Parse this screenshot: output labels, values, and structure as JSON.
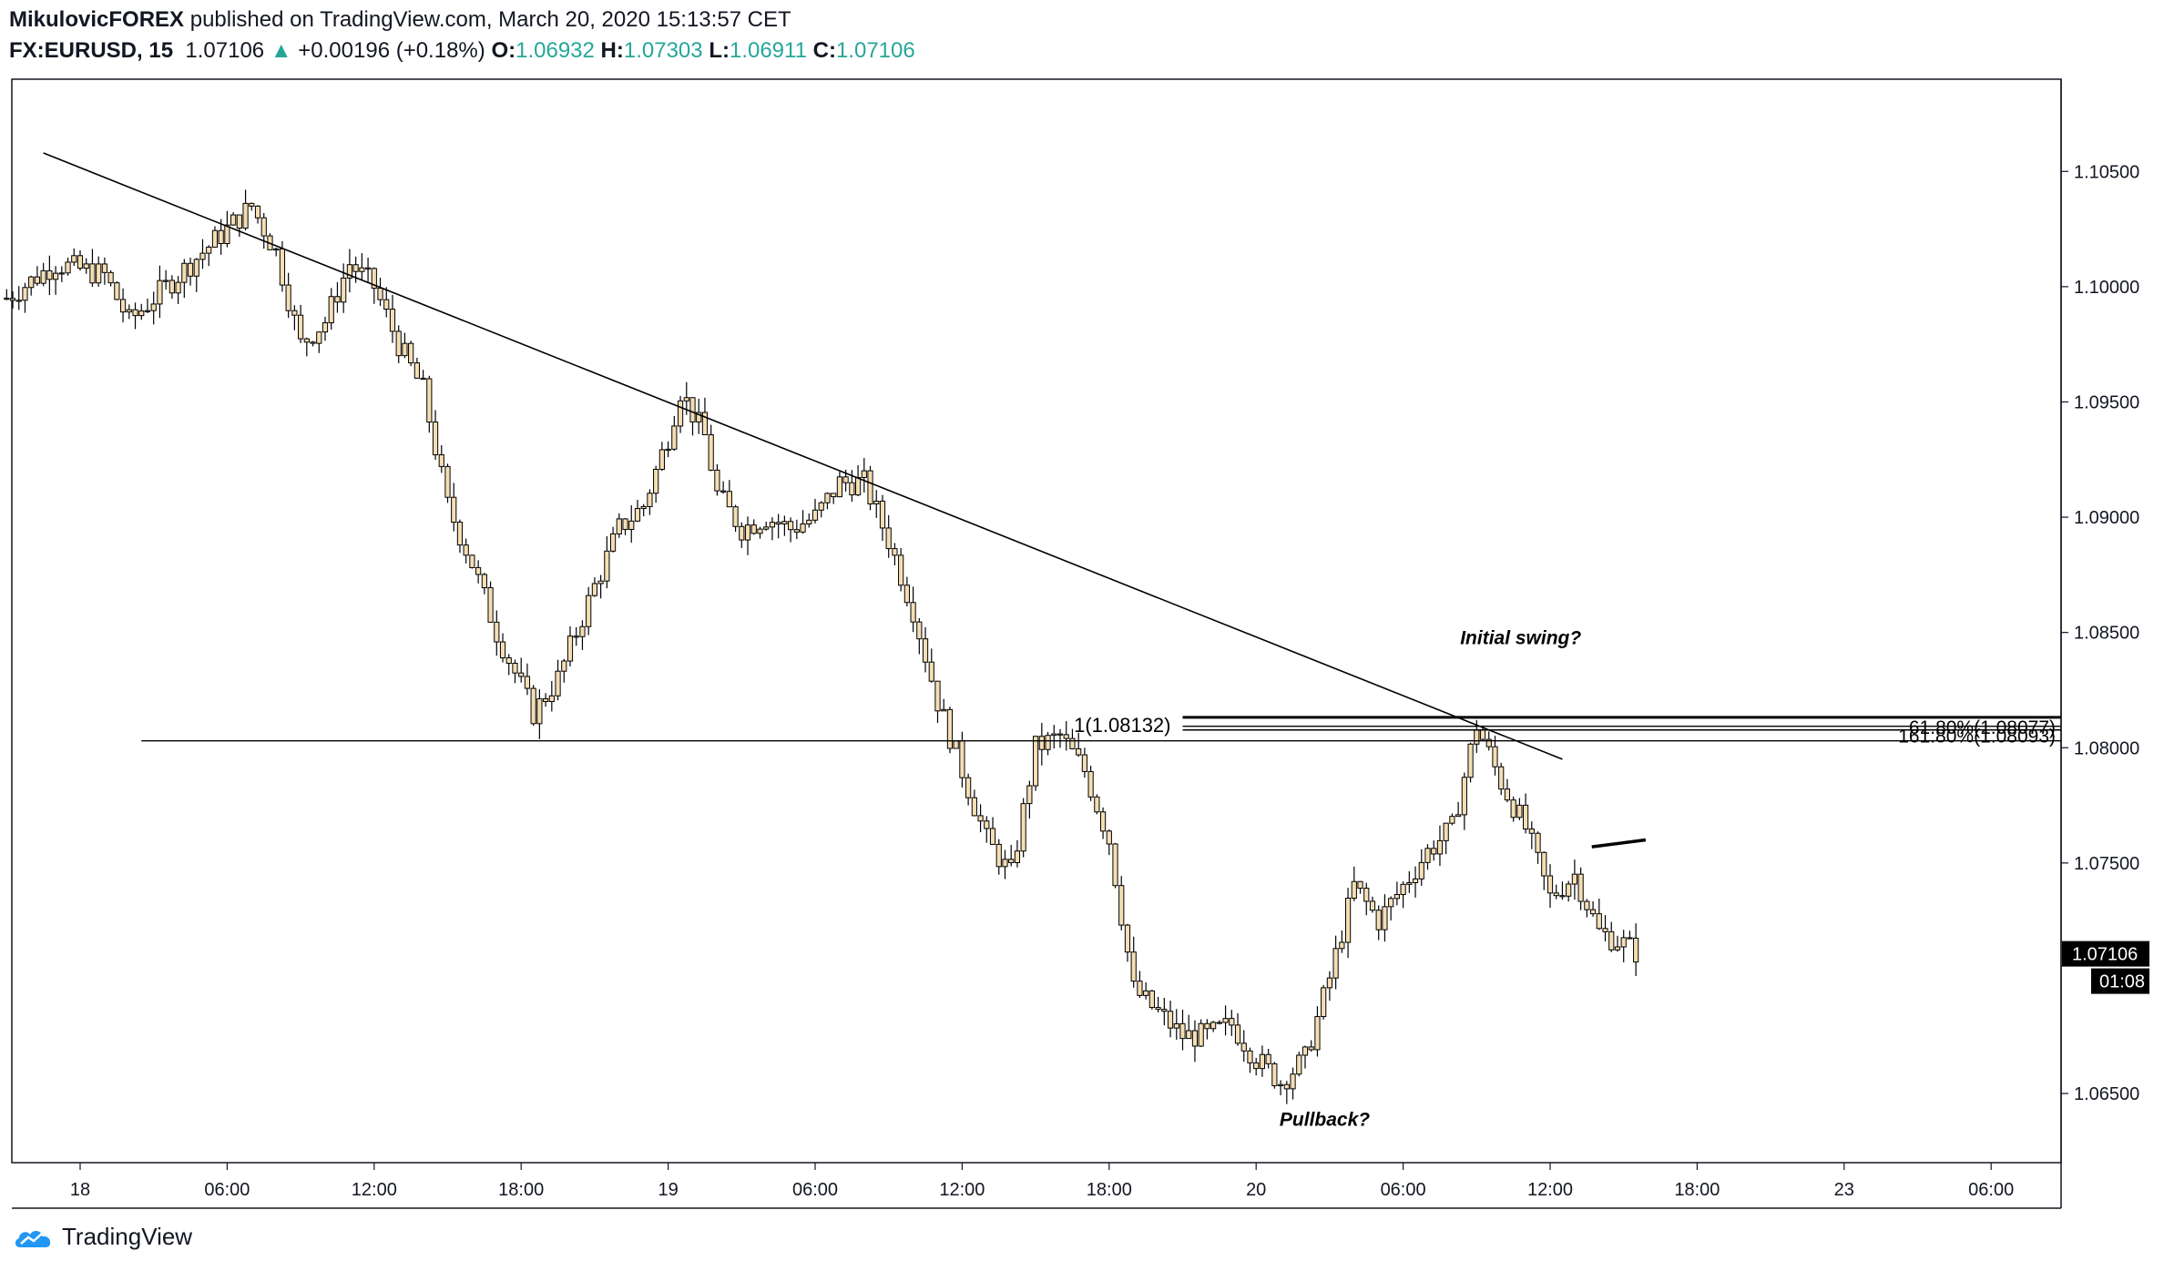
{
  "header": {
    "author": "MikulovicFOREX",
    "published_text": "published on TradingView.com, March 20, 2020 15:13:57 CET",
    "symbol": "FX:EURUSD, 15",
    "last": "1.07106",
    "change": "+0.00196 (+0.18%)",
    "o_label": "O:",
    "o_value": "1.06932",
    "h_label": "H:",
    "h_value": "1.07303",
    "l_label": "L:",
    "l_value": "1.06911",
    "c_label": "C:",
    "c_value": "1.07106"
  },
  "logo": {
    "text": "TradingView",
    "icon": "tradingview-cloud-icon"
  },
  "colors": {
    "up": "#26a69a",
    "candle_body": "#f5deb3",
    "candle_border": "#000000",
    "price_label_bg": "#000000"
  },
  "chart_data": {
    "type": "candlestick",
    "instrument": "FX:EURUSD",
    "timeframe": "15",
    "ylim": [
      1.062,
      1.109
    ],
    "y_ticks": [
      1.105,
      1.1,
      1.095,
      1.09,
      1.085,
      1.08,
      1.075,
      1.065
    ],
    "y_tick_labels": [
      "1.10500",
      "1.10000",
      "1.09500",
      "1.09000",
      "1.08500",
      "1.08000",
      "1.07500",
      "1.06500"
    ],
    "x_range_hours": [
      -4,
      86
    ],
    "x_ticks": [
      {
        "h": 0,
        "label": "18"
      },
      {
        "h": 6,
        "label": "06:00"
      },
      {
        "h": 12,
        "label": "12:00"
      },
      {
        "h": 18,
        "label": "18:00"
      },
      {
        "h": 24,
        "label": "19"
      },
      {
        "h": 30,
        "label": "06:00"
      },
      {
        "h": 36,
        "label": "12:00"
      },
      {
        "h": 42,
        "label": "18:00"
      },
      {
        "h": 48,
        "label": "20"
      },
      {
        "h": 54,
        "label": "06:00"
      },
      {
        "h": 60,
        "label": "12:00"
      },
      {
        "h": 66,
        "label": "18:00"
      },
      {
        "h": 72,
        "label": "23"
      },
      {
        "h": 78,
        "label": "06:00"
      }
    ],
    "price_path": [
      [
        -3,
        1.0995
      ],
      [
        -1,
        1.101
      ],
      [
        1,
        1.1005
      ],
      [
        2,
        1.0985
      ],
      [
        4,
        1.1005
      ],
      [
        6,
        1.1025
      ],
      [
        7,
        1.1035
      ],
      [
        8,
        1.1015
      ],
      [
        9,
        1.0975
      ],
      [
        10,
        1.0985
      ],
      [
        11,
        1.101
      ],
      [
        12,
        1.1
      ],
      [
        13,
        1.0975
      ],
      [
        14,
        1.0955
      ],
      [
        15,
        1.0905
      ],
      [
        16,
        1.088
      ],
      [
        17,
        1.085
      ],
      [
        18.5,
        1.0815
      ],
      [
        19.5,
        1.083
      ],
      [
        21,
        1.087
      ],
      [
        22,
        1.0895
      ],
      [
        23,
        1.0905
      ],
      [
        24,
        1.0935
      ],
      [
        24.5,
        1.0955
      ],
      [
        25.5,
        1.0935
      ],
      [
        26,
        1.091
      ],
      [
        27,
        1.0895
      ],
      [
        28,
        1.09
      ],
      [
        29,
        1.0895
      ],
      [
        30,
        1.09
      ],
      [
        31,
        1.0915
      ],
      [
        32,
        1.0915
      ],
      [
        33,
        1.089
      ],
      [
        34,
        1.086
      ],
      [
        35,
        1.082
      ],
      [
        36,
        1.079
      ],
      [
        37,
        1.076
      ],
      [
        38,
        1.0745
      ],
      [
        39,
        1.08
      ],
      [
        40,
        1.0805
      ],
      [
        41,
        1.079
      ],
      [
        42,
        1.076
      ],
      [
        43,
        1.0695
      ],
      [
        44,
        1.0685
      ],
      [
        45,
        1.0675
      ],
      [
        46,
        1.0675
      ],
      [
        47,
        1.068
      ],
      [
        48,
        1.0665
      ],
      [
        49,
        1.0655
      ],
      [
        50,
        1.0665
      ],
      [
        51,
        1.07
      ],
      [
        52,
        1.074
      ],
      [
        53,
        1.0725
      ],
      [
        54,
        1.074
      ],
      [
        55,
        1.0755
      ],
      [
        56,
        1.0765
      ],
      [
        57,
        1.081
      ],
      [
        58,
        1.0785
      ],
      [
        59,
        1.0765
      ],
      [
        60,
        1.0735
      ],
      [
        61,
        1.0745
      ],
      [
        62,
        1.072
      ],
      [
        63,
        1.0715
      ],
      [
        63.7,
        1.071
      ]
    ],
    "trendline": {
      "start": [
        -1.5,
        1.1058
      ],
      "end": [
        60.5,
        1.0795
      ]
    },
    "horizontal_line": {
      "start_hour": 2.5,
      "price": 1.0803
    },
    "fib_lines": [
      {
        "price": 1.08132,
        "start_hour": 45,
        "label": "1(1.08132)"
      },
      {
        "price": 1.08093,
        "start_hour": 45,
        "label": "161.80%(1.08093)"
      },
      {
        "price": 1.08077,
        "start_hour": 45,
        "label": "61.80%(1.08077)"
      }
    ],
    "extra_segment": {
      "start": [
        61.7,
        1.0757
      ],
      "end": [
        63.9,
        1.076
      ]
    },
    "annotations": [
      {
        "text": "Initial swing?",
        "hour": 58.8,
        "price": 1.0845
      },
      {
        "text": "Pullback?",
        "hour": 50.8,
        "price": 1.0636
      }
    ],
    "last_price": {
      "price": 1.07106,
      "label": "1.07106",
      "countdown": "01:08"
    }
  }
}
